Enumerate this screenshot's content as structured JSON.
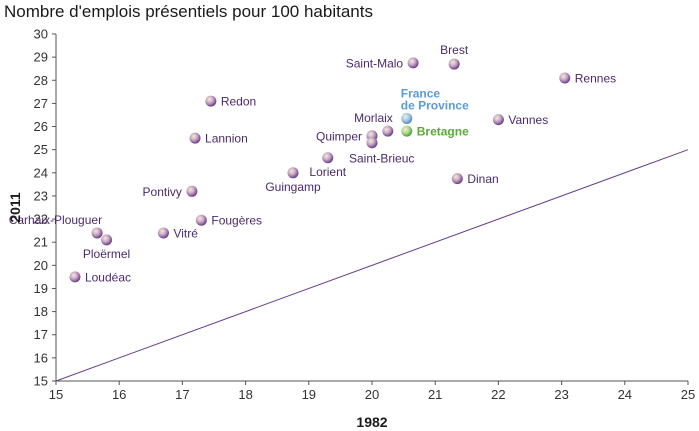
{
  "chart_data": {
    "type": "scatter",
    "title": "Nombre d'emplois présentiels pour 100 habitants",
    "xlabel": "1982",
    "ylabel": "2011",
    "xlim": [
      15,
      25
    ],
    "ylim": [
      15,
      30
    ],
    "x_ticks": [
      "15",
      "16",
      "17",
      "18",
      "19",
      "20",
      "21",
      "22",
      "23",
      "24",
      "25"
    ],
    "y_ticks": [
      "15",
      "16",
      "17",
      "18",
      "19",
      "20",
      "21",
      "22",
      "23",
      "24",
      "25",
      "26",
      "27",
      "28",
      "29",
      "30"
    ],
    "grid": false,
    "reference_line": {
      "from": [
        15,
        15
      ],
      "to": [
        25,
        25
      ],
      "color": "#6b3d8a"
    },
    "colors": {
      "point": "#6b3d8a",
      "point_light": "#e8d8a8",
      "france": "#5b9bd5",
      "bretagne": "#5aaa3a",
      "label": "#4a2a6a"
    },
    "points": [
      {
        "name": "Brest",
        "x": 21.3,
        "y": 28.7,
        "anchor": "top",
        "kind": "city"
      },
      {
        "name": "Saint-Malo",
        "x": 20.65,
        "y": 28.75,
        "anchor": "left",
        "kind": "city"
      },
      {
        "name": "Rennes",
        "x": 23.05,
        "y": 28.1,
        "anchor": "right",
        "kind": "city"
      },
      {
        "name": "Redon",
        "x": 17.45,
        "y": 27.1,
        "anchor": "right",
        "kind": "city"
      },
      {
        "name": "France de Province",
        "x": 20.55,
        "y": 26.35,
        "anchor": "top",
        "kind": "france"
      },
      {
        "name": "Vannes",
        "x": 22.0,
        "y": 26.3,
        "anchor": "right",
        "kind": "city"
      },
      {
        "name": "Morlaix",
        "x": 20.25,
        "y": 25.8,
        "anchor": "topleft",
        "kind": "city"
      },
      {
        "name": "Bretagne",
        "x": 20.55,
        "y": 25.8,
        "anchor": "right",
        "kind": "bretagne"
      },
      {
        "name": "Quimper",
        "x": 20.0,
        "y": 25.6,
        "anchor": "left",
        "kind": "city"
      },
      {
        "name": "Lannion",
        "x": 17.2,
        "y": 25.5,
        "anchor": "right",
        "kind": "city"
      },
      {
        "name": "Saint-Brieuc",
        "x": 20.0,
        "y": 25.3,
        "anchor": "bottomright",
        "kind": "city"
      },
      {
        "name": "Lorient",
        "x": 19.3,
        "y": 24.65,
        "anchor": "bottom",
        "kind": "city"
      },
      {
        "name": "Guingamp",
        "x": 18.75,
        "y": 24.0,
        "anchor": "bottom",
        "kind": "city"
      },
      {
        "name": "Dinan",
        "x": 21.35,
        "y": 23.75,
        "anchor": "right",
        "kind": "city"
      },
      {
        "name": "Pontivy",
        "x": 17.15,
        "y": 23.2,
        "anchor": "left",
        "kind": "city"
      },
      {
        "name": "Fougères",
        "x": 17.3,
        "y": 21.95,
        "anchor": "right",
        "kind": "city"
      },
      {
        "name": "Carhaix-Plouguer",
        "x": 15.65,
        "y": 21.4,
        "anchor": "topleft",
        "kind": "city"
      },
      {
        "name": "Vitré",
        "x": 16.7,
        "y": 21.4,
        "anchor": "right",
        "kind": "city"
      },
      {
        "name": "Ploërmel",
        "x": 15.8,
        "y": 21.1,
        "anchor": "bottom",
        "kind": "city"
      },
      {
        "name": "Loudéac",
        "x": 15.3,
        "y": 19.5,
        "anchor": "right",
        "kind": "city"
      }
    ]
  }
}
